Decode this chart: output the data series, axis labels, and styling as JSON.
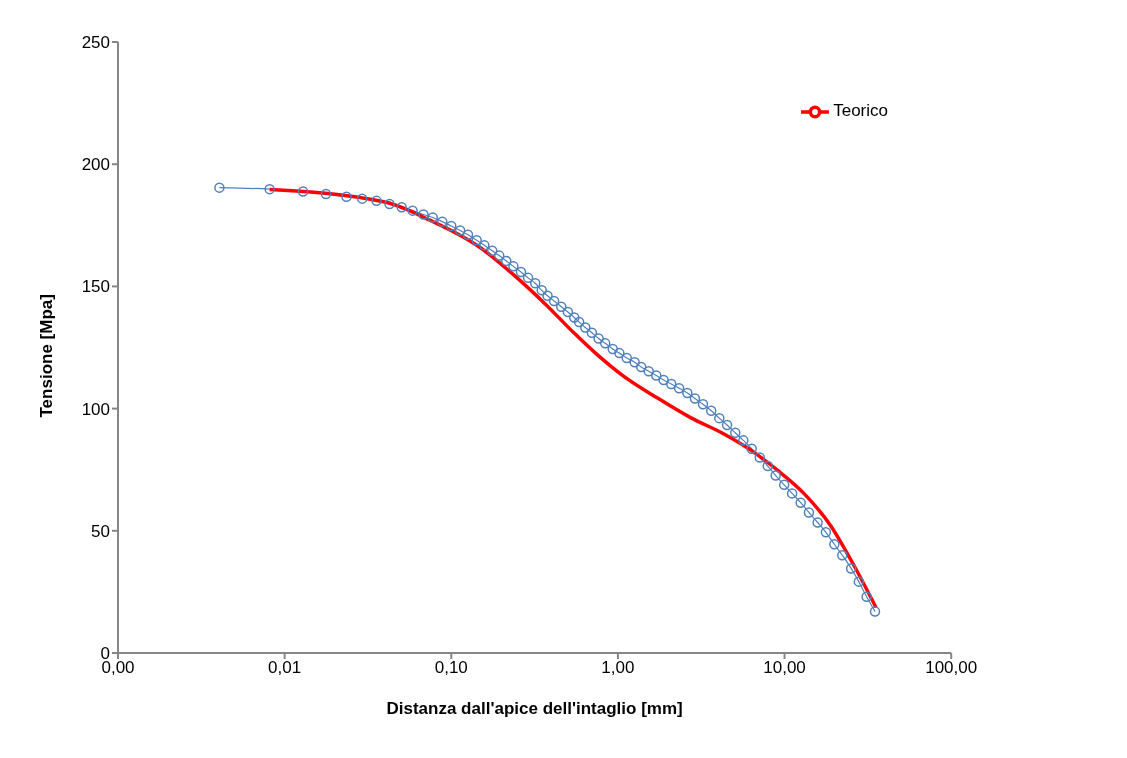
{
  "chart_data": {
    "type": "line",
    "xlabel": "Distanza dall'apice dell'intaglio [mm]",
    "ylabel": "Tensione [Mpa]",
    "log": "x",
    "xlim": [
      0.001,
      100
    ],
    "xticks": [
      {
        "value": 0.001,
        "label": "0,00"
      },
      {
        "value": 0.01,
        "label": "0,01"
      },
      {
        "value": 0.1,
        "label": "0,10"
      },
      {
        "value": 1,
        "label": "1,00"
      },
      {
        "value": 10,
        "label": "10,00"
      },
      {
        "value": 100,
        "label": "100,00"
      }
    ],
    "ylim": [
      0,
      250
    ],
    "yticks": [
      0,
      50,
      100,
      150,
      200,
      250
    ],
    "grid": false,
    "legend": "top right",
    "series": [
      {
        "color": "#4f81bd",
        "marker": "circle",
        "x": [
          0.00406,
          0.00813,
          0.0129,
          0.0177,
          0.0235,
          0.0292,
          0.0356,
          0.0426,
          0.0504,
          0.0586,
          0.0681,
          0.0774,
          0.0883,
          0.1,
          0.113,
          0.126,
          0.142,
          0.158,
          0.176,
          0.194,
          0.214,
          0.236,
          0.262,
          0.289,
          0.319,
          0.349,
          0.378,
          0.414,
          0.457,
          0.501,
          0.547,
          0.585,
          0.637,
          0.698,
          0.766,
          0.839,
          0.931,
          1.02,
          1.13,
          1.26,
          1.38,
          1.53,
          1.7,
          1.88,
          2.09,
          2.33,
          2.61,
          2.9,
          3.24,
          3.63,
          4.06,
          4.52,
          5.06,
          5.66,
          6.35,
          7.1,
          7.93,
          8.85,
          9.95,
          11.1,
          12.5,
          14.0,
          15.8,
          17.7,
          19.9,
          22.2,
          25.1,
          27.9,
          31.1,
          34.9
        ],
        "values": [
          190.4,
          189.8,
          188.8,
          187.8,
          186.7,
          185.9,
          185.0,
          183.7,
          182.4,
          181.0,
          179.4,
          178.2,
          176.5,
          174.7,
          172.9,
          171.1,
          168.9,
          166.8,
          164.6,
          162.6,
          160.4,
          158.2,
          155.9,
          153.5,
          151.3,
          148.4,
          146.2,
          144.0,
          141.7,
          139.5,
          137.3,
          135.4,
          133.2,
          131.0,
          128.7,
          126.7,
          124.4,
          122.7,
          120.7,
          119.0,
          117.0,
          115.3,
          113.5,
          111.7,
          110.1,
          108.3,
          106.4,
          104.1,
          101.8,
          99.1,
          96.1,
          93.3,
          90.1,
          87.0,
          83.6,
          80.0,
          76.5,
          72.6,
          68.8,
          65.3,
          61.5,
          57.5,
          53.4,
          49.4,
          44.5,
          40.0,
          34.6,
          29.2,
          23.0,
          17.0
        ]
      },
      {
        "name": "Teorico",
        "color": "#ff0000",
        "marker": "none",
        "x": [
          0.00813,
          0.0405,
          0.0743,
          0.149,
          0.236,
          0.374,
          0.542,
          0.748,
          1.08,
          1.72,
          2.73,
          4.33,
          6.27,
          9.06,
          13.1,
          19.0,
          26.2,
          35.4
        ],
        "values": [
          189.6,
          184.4,
          177.1,
          165.9,
          154.8,
          142.2,
          131.1,
          122.2,
          113.3,
          104.4,
          96.3,
          89.6,
          83.0,
          74.8,
          65.2,
          51.9,
          35.6,
          18.6
        ]
      }
    ]
  }
}
